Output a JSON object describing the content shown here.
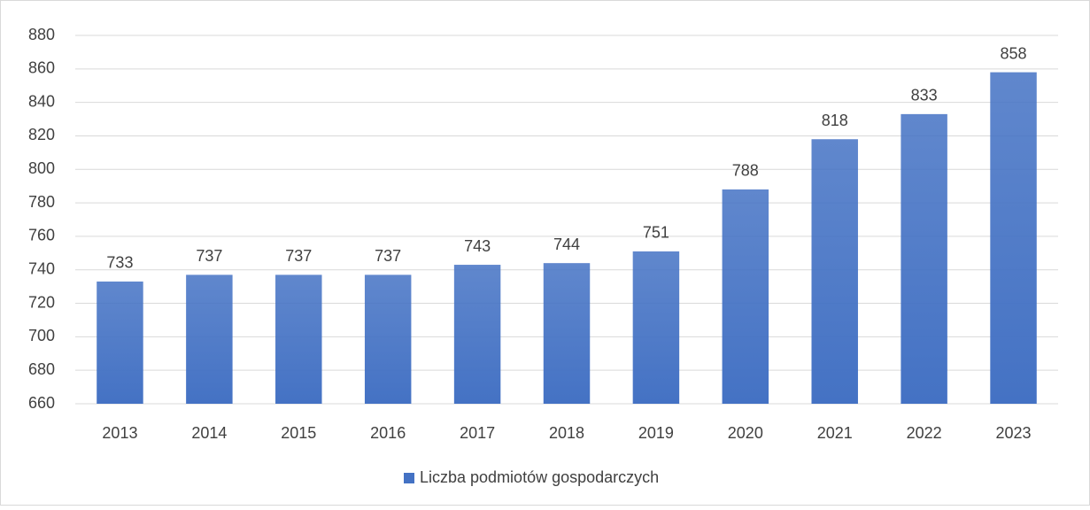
{
  "chart_data": {
    "type": "bar",
    "categories": [
      "2013",
      "2014",
      "2015",
      "2016",
      "2017",
      "2018",
      "2019",
      "2020",
      "2021",
      "2022",
      "2023"
    ],
    "series": [
      {
        "name": "Liczba podmiotów gospodarczych",
        "color": "#4472c4",
        "values": [
          733,
          737,
          737,
          737,
          743,
          744,
          751,
          788,
          818,
          833,
          858
        ]
      }
    ],
    "ylim": [
      660,
      880
    ],
    "yticks": [
      660,
      680,
      700,
      720,
      740,
      760,
      780,
      800,
      820,
      840,
      860,
      880
    ],
    "grid": true,
    "legend": "bottom"
  }
}
